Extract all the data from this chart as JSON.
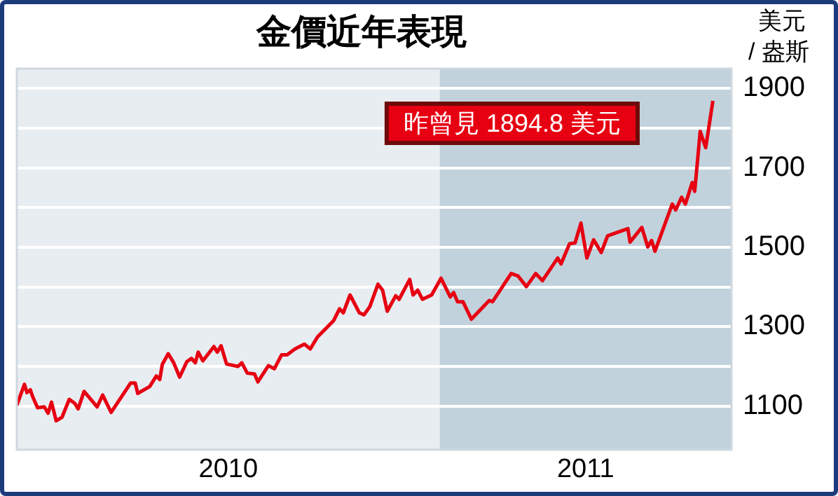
{
  "chart_data": {
    "type": "line",
    "title": "金價近年表現",
    "ylabel": "美元\n/ 盎斯",
    "annotations": [
      "昨曾見 1894.8 美元"
    ],
    "xlim": [
      2010,
      2011.69
    ],
    "xticks": [
      {
        "value": 2010.5,
        "label": "2010"
      },
      {
        "value": 2011.345,
        "label": "2011"
      }
    ],
    "ylim": [
      990,
      1950
    ],
    "yticks": [
      1100,
      {
        "value": 1200,
        "label": null
      },
      1300,
      {
        "value": 1400,
        "label": null
      },
      1500,
      {
        "value": 1600,
        "label": null
      },
      1700,
      {
        "value": 1800,
        "label": null
      },
      1900
    ],
    "grid": "y",
    "legend": false,
    "marker": "none",
    "line_style": "solid",
    "bands": [
      {
        "axis": "x",
        "from": 2010,
        "to": 2011,
        "color": "#e8edf1"
      },
      {
        "axis": "x",
        "from": 2011,
        "to": 2011.69,
        "color": "#c1d2dc"
      }
    ],
    "series": [
      {
        "color": "#e60012",
        "x": [
          2010.0,
          2010.018,
          2010.024,
          2010.032,
          2010.037,
          2010.049,
          2010.065,
          2010.074,
          2010.082,
          2010.093,
          2010.107,
          2010.124,
          2010.137,
          2010.145,
          2010.159,
          2010.19,
          2010.203,
          2010.223,
          2010.269,
          2010.28,
          2010.286,
          2010.314,
          2010.33,
          2010.338,
          2010.344,
          2010.358,
          2010.371,
          2010.385,
          2010.402,
          2010.413,
          2010.422,
          2010.429,
          2010.44,
          2010.466,
          2010.474,
          2010.483,
          2010.496,
          2010.523,
          2010.532,
          2010.545,
          2010.562,
          2010.57,
          2010.595,
          2010.609,
          2010.626,
          2010.639,
          2010.658,
          2010.68,
          2010.694,
          2010.711,
          2010.749,
          2010.763,
          2010.772,
          2010.788,
          2010.81,
          2010.821,
          2010.835,
          2010.854,
          2010.865,
          2010.876,
          2010.896,
          2010.904,
          2010.929,
          2010.937,
          2010.948,
          2010.959,
          2010.981,
          2011.003,
          2011.025,
          2011.033,
          2011.042,
          2011.055,
          2011.075,
          2011.117,
          2011.125,
          2011.169,
          2011.185,
          2011.205,
          2011.227,
          2011.243,
          2011.279,
          2011.287,
          2011.307,
          2011.32,
          2011.334,
          2011.348,
          2011.364,
          2011.382,
          2011.397,
          2011.445,
          2011.45,
          2011.478,
          2011.492,
          2011.501,
          2011.509,
          2011.55,
          2011.558,
          2011.572,
          2011.581,
          2011.597,
          2011.603,
          2011.616,
          2011.629,
          2011.646
        ],
        "values": [
          1102,
          1155,
          1134,
          1141,
          1125,
          1096,
          1098,
          1082,
          1110,
          1063,
          1072,
          1117,
          1107,
          1093,
          1137,
          1098,
          1128,
          1084,
          1158,
          1158,
          1132,
          1149,
          1176,
          1167,
          1205,
          1232,
          1209,
          1173,
          1212,
          1220,
          1209,
          1236,
          1214,
          1250,
          1236,
          1252,
          1206,
          1200,
          1209,
          1183,
          1181,
          1161,
          1202,
          1194,
          1229,
          1229,
          1244,
          1256,
          1244,
          1274,
          1315,
          1345,
          1335,
          1380,
          1335,
          1330,
          1351,
          1407,
          1392,
          1339,
          1378,
          1369,
          1419,
          1380,
          1392,
          1369,
          1380,
          1422,
          1375,
          1386,
          1363,
          1363,
          1319,
          1366,
          1363,
          1434,
          1428,
          1401,
          1434,
          1416,
          1473,
          1458,
          1509,
          1511,
          1561,
          1473,
          1519,
          1487,
          1529,
          1547,
          1513,
          1550,
          1501,
          1517,
          1490,
          1609,
          1594,
          1626,
          1609,
          1663,
          1641,
          1792,
          1751,
          1869
        ]
      }
    ]
  }
}
